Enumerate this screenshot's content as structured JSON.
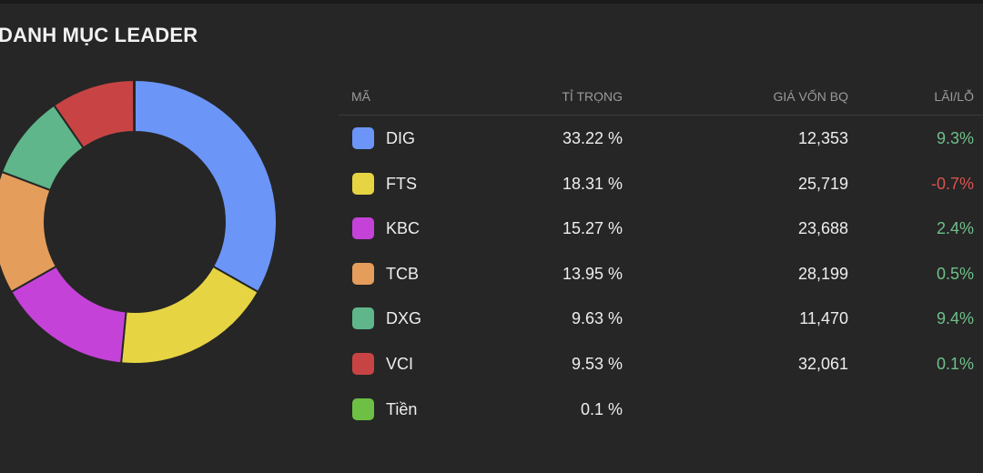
{
  "title": "DANH MỤC LEADER",
  "table": {
    "headers": {
      "code": "MÃ",
      "weight": "TỈ TRỌNG",
      "cost": "GIÁ VỐN BQ",
      "pnl": "LÃI/LỖ"
    },
    "rows": [
      {
        "code": "DIG",
        "weight": "33.22  %",
        "cost": "12,353",
        "pnl": "9.3%",
        "color": "#6b95f7",
        "trend": "pos"
      },
      {
        "code": "FTS",
        "weight": "18.31  %",
        "cost": "25,719",
        "pnl": "-0.7%",
        "color": "#e6d443",
        "trend": "neg"
      },
      {
        "code": "KBC",
        "weight": "15.27  %",
        "cost": "23,688",
        "pnl": "2.4%",
        "color": "#c542d8",
        "trend": "pos"
      },
      {
        "code": "TCB",
        "weight": "13.95  %",
        "cost": "28,199",
        "pnl": "0.5%",
        "color": "#e59d5b",
        "trend": "pos"
      },
      {
        "code": "DXG",
        "weight": "9.63  %",
        "cost": "11,470",
        "pnl": "9.4%",
        "color": "#5fb68b",
        "trend": "pos"
      },
      {
        "code": "VCI",
        "weight": "9.53  %",
        "cost": "32,061",
        "pnl": "0.1%",
        "color": "#c84444",
        "trend": "pos"
      },
      {
        "code": "Tiền",
        "weight": "0.1  %",
        "cost": "",
        "pnl": "",
        "color": "#6dc043",
        "trend": "pos"
      }
    ]
  },
  "chart_data": {
    "type": "pie",
    "categories": [
      "DIG",
      "FTS",
      "KBC",
      "TCB",
      "DXG",
      "VCI",
      "Tiền"
    ],
    "values": [
      33.22,
      18.31,
      15.27,
      13.95,
      9.63,
      9.53,
      0.1
    ],
    "colors": [
      "#6b95f7",
      "#e6d443",
      "#c542d8",
      "#e59d5b",
      "#5fb68b",
      "#c84444",
      "#6dc043"
    ]
  }
}
